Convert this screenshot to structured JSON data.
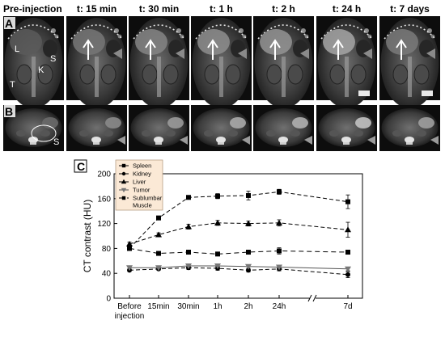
{
  "panel_a": {
    "letter": "A",
    "timepoints": [
      "Pre-injection",
      "t: 15 min",
      "t: 30 min",
      "t: 1 h",
      "t: 2 h",
      "t: 24 h",
      "t: 7 days"
    ],
    "organ_labels": [
      "L",
      "S",
      "K",
      "T"
    ]
  },
  "panel_b": {
    "letter": "B",
    "organ_labels": [
      "S"
    ]
  },
  "panel_c": {
    "letter": "C"
  },
  "chart_data": {
    "type": "line",
    "ylabel": "CT contrast (HU)",
    "ylim": [
      0,
      200
    ],
    "yticks": [
      0,
      40,
      80,
      120,
      160,
      200
    ],
    "categories": [
      "Before injection",
      "15min",
      "30min",
      "1h",
      "2h",
      "24h",
      "7d"
    ],
    "x_tick_lines": [
      [
        "Before",
        "injection"
      ],
      [
        "15min"
      ],
      [
        "30min"
      ],
      [
        "1h"
      ],
      [
        "2h"
      ],
      [
        "24h"
      ],
      [
        "7d"
      ]
    ],
    "axis_break": "between 24h and 7d",
    "legend_position": "top-left",
    "series": [
      {
        "name": "Spleen",
        "marker": "square",
        "values": [
          80,
          129,
          162,
          164,
          165,
          171,
          155
        ],
        "errors": [
          2,
          3,
          3,
          4,
          7,
          4,
          11
        ]
      },
      {
        "name": "Kidney",
        "marker": "circle",
        "values": [
          45,
          47,
          49,
          48,
          45,
          47,
          38
        ],
        "errors": [
          2,
          2,
          3,
          3,
          3,
          3,
          5
        ]
      },
      {
        "name": "Liver",
        "marker": "triangle-up",
        "values": [
          87,
          102,
          115,
          121,
          120,
          121,
          110
        ],
        "errors": [
          3,
          3,
          4,
          4,
          4,
          5,
          12
        ]
      },
      {
        "name": "Tumor",
        "marker": "triangle-down",
        "values": [
          49,
          49,
          52,
          52,
          51,
          50,
          47
        ],
        "errors": [
          2,
          2,
          2,
          2,
          3,
          2,
          3
        ]
      },
      {
        "name": "Sublumbar Muscle",
        "marker": "square",
        "values": [
          80,
          72,
          74,
          71,
          74,
          76,
          74
        ],
        "errors": [
          2,
          3,
          2,
          2,
          3,
          5,
          3
        ]
      }
    ]
  }
}
